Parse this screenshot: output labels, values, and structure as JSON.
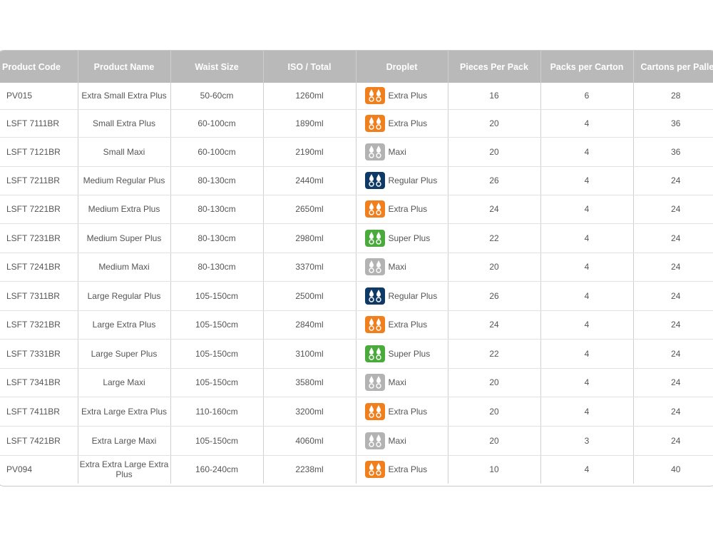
{
  "columns": [
    "Product Code",
    "Product Name",
    "Waist Size",
    "ISO / Total",
    "Droplet",
    "Pieces Per Pack",
    "Packs per Carton",
    "Cartons per Palle"
  ],
  "droplet_colors": {
    "Extra Plus": "#f07f1e",
    "Maxi": "#b3b3b3",
    "Regular Plus": "#0f3a66",
    "Super Plus": "#4aaa3c"
  },
  "rows": [
    {
      "code": "PV015",
      "name": "Extra Small Extra Plus",
      "waist": "50-60cm",
      "iso": "1260ml",
      "droplet": "Extra Plus",
      "pieces": "16",
      "packs": "6",
      "cartons": "28"
    },
    {
      "code": "LSFT 7111BR",
      "name": "Small Extra Plus",
      "waist": "60-100cm",
      "iso": "1890ml",
      "droplet": "Extra Plus",
      "pieces": "20",
      "packs": "4",
      "cartons": "36"
    },
    {
      "code": "LSFT 7121BR",
      "name": "Small Maxi",
      "waist": "60-100cm",
      "iso": "2190ml",
      "droplet": "Maxi",
      "pieces": "20",
      "packs": "4",
      "cartons": "36"
    },
    {
      "code": "LSFT 7211BR",
      "name": "Medium Regular Plus",
      "waist": "80-130cm",
      "iso": "2440ml",
      "droplet": "Regular Plus",
      "pieces": "26",
      "packs": "4",
      "cartons": "24"
    },
    {
      "code": "LSFT 7221BR",
      "name": "Medium Extra Plus",
      "waist": "80-130cm",
      "iso": "2650ml",
      "droplet": "Extra Plus",
      "pieces": "24",
      "packs": "4",
      "cartons": "24"
    },
    {
      "code": "LSFT 7231BR",
      "name": "Medium Super Plus",
      "waist": "80-130cm",
      "iso": "2980ml",
      "droplet": "Super Plus",
      "pieces": "22",
      "packs": "4",
      "cartons": "24"
    },
    {
      "code": "LSFT 7241BR",
      "name": "Medium Maxi",
      "waist": "80-130cm",
      "iso": "3370ml",
      "droplet": "Maxi",
      "pieces": "20",
      "packs": "4",
      "cartons": "24"
    },
    {
      "code": "LSFT 7311BR",
      "name": "Large Regular Plus",
      "waist": "105-150cm",
      "iso": "2500ml",
      "droplet": "Regular Plus",
      "pieces": "26",
      "packs": "4",
      "cartons": "24"
    },
    {
      "code": "LSFT 7321BR",
      "name": "Large Extra Plus",
      "waist": "105-150cm",
      "iso": "2840ml",
      "droplet": "Extra Plus",
      "pieces": "24",
      "packs": "4",
      "cartons": "24"
    },
    {
      "code": "LSFT 7331BR",
      "name": "Large Super Plus",
      "waist": "105-150cm",
      "iso": "3100ml",
      "droplet": "Super Plus",
      "pieces": "22",
      "packs": "4",
      "cartons": "24"
    },
    {
      "code": "LSFT 7341BR",
      "name": "Large Maxi",
      "waist": "105-150cm",
      "iso": "3580ml",
      "droplet": "Maxi",
      "pieces": "20",
      "packs": "4",
      "cartons": "24"
    },
    {
      "code": "LSFT 7411BR",
      "name": "Extra Large Extra Plus",
      "waist": "110-160cm",
      "iso": "3200ml",
      "droplet": "Extra Plus",
      "pieces": "20",
      "packs": "4",
      "cartons": "24"
    },
    {
      "code": "LSFT 7421BR",
      "name": "Extra Large Maxi",
      "waist": "105-150cm",
      "iso": "4060ml",
      "droplet": "Maxi",
      "pieces": "20",
      "packs": "3",
      "cartons": "24"
    },
    {
      "code": "PV094",
      "name": "Extra Extra Large Extra Plus",
      "waist": "160-240cm",
      "iso": "2238ml",
      "droplet": "Extra Plus",
      "pieces": "10",
      "packs": "4",
      "cartons": "40"
    }
  ]
}
